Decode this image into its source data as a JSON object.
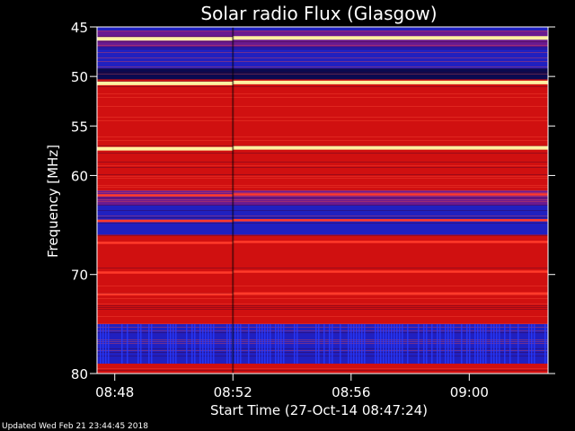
{
  "chart_data": {
    "type": "heatmap",
    "title": "Solar radio Flux (Glasgow)",
    "xlabel": "Start Time (27-Oct-14 08:47:24)",
    "ylabel": "Frequency [MHz]",
    "x_axis": {
      "unit": "time",
      "start": "08:47:24",
      "end": "09:02:40",
      "ticks": [
        "08:48",
        "08:52",
        "08:56",
        "09:00"
      ]
    },
    "y_axis": {
      "unit": "MHz",
      "range": [
        45,
        80
      ],
      "ticks": [
        45,
        50,
        55,
        60,
        70,
        80
      ]
    },
    "colors": {
      "background": "#000000",
      "low": "#2020c0",
      "mid": "#d01010",
      "high": "#ff3a2a",
      "peak": "#fff0a0"
    },
    "time_discontinuity": "08:52",
    "bands": [
      {
        "freq": [
          45.0,
          45.4
        ],
        "level": "low"
      },
      {
        "freq": [
          45.4,
          47.0
        ],
        "level": "mixed"
      },
      {
        "freq": [
          47.0,
          49.2
        ],
        "level": "low"
      },
      {
        "freq": [
          49.2,
          50.3
        ],
        "level": "darkblue"
      },
      {
        "freq": [
          50.3,
          61.5
        ],
        "level": "mid"
      },
      {
        "freq": [
          61.5,
          63.0
        ],
        "level": "mixed"
      },
      {
        "freq": [
          63.0,
          66.0
        ],
        "level": "low"
      },
      {
        "freq": [
          66.0,
          75.0
        ],
        "level": "mid"
      },
      {
        "freq": [
          75.0,
          79.0
        ],
        "level": "low"
      },
      {
        "freq": [
          79.0,
          80.0
        ],
        "level": "mid"
      }
    ],
    "emission_lines": [
      {
        "freq": 46.2,
        "level": "peak"
      },
      {
        "freq": 50.7,
        "level": "peak"
      },
      {
        "freq": 57.3,
        "level": "peak"
      },
      {
        "freq": 62.0,
        "level": "high"
      },
      {
        "freq": 64.6,
        "level": "high"
      },
      {
        "freq": 66.8,
        "level": "high"
      },
      {
        "freq": 69.8,
        "level": "high"
      },
      {
        "freq": 72.0,
        "level": "high"
      }
    ]
  },
  "footer": {
    "updated": "Updated Wed Feb 21 23:44:45 2018"
  }
}
